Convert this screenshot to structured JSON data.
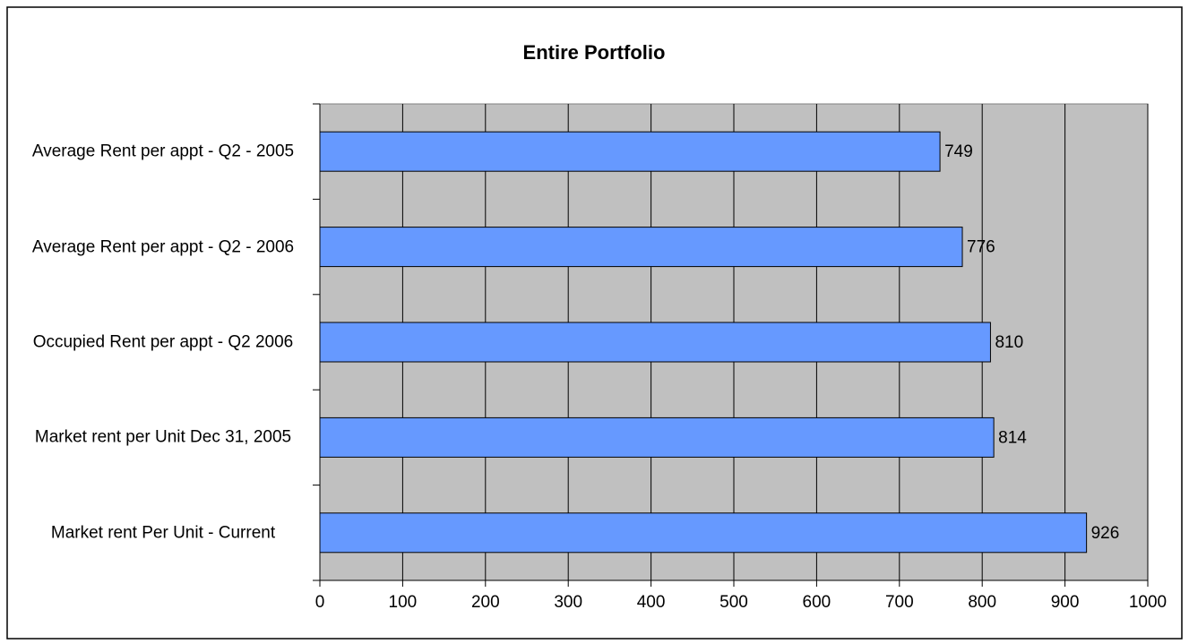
{
  "chart_data": {
    "type": "bar",
    "orientation": "horizontal",
    "title": "Entire Portfolio",
    "categories": [
      "Average Rent per appt - Q2 - 2005",
      "Average Rent per appt - Q2 - 2006",
      "Occupied Rent  per appt - Q2 2006",
      "Market rent per Unit Dec 31, 2005",
      "Market rent Per Unit - Current"
    ],
    "values": [
      749,
      776,
      810,
      814,
      926
    ],
    "color": "#6699ff",
    "background": "#c0c0c0",
    "xlim": [
      0,
      1000
    ],
    "xticks": [
      0,
      100,
      200,
      300,
      400,
      500,
      600,
      700,
      800,
      900,
      1000
    ],
    "grid": true
  }
}
